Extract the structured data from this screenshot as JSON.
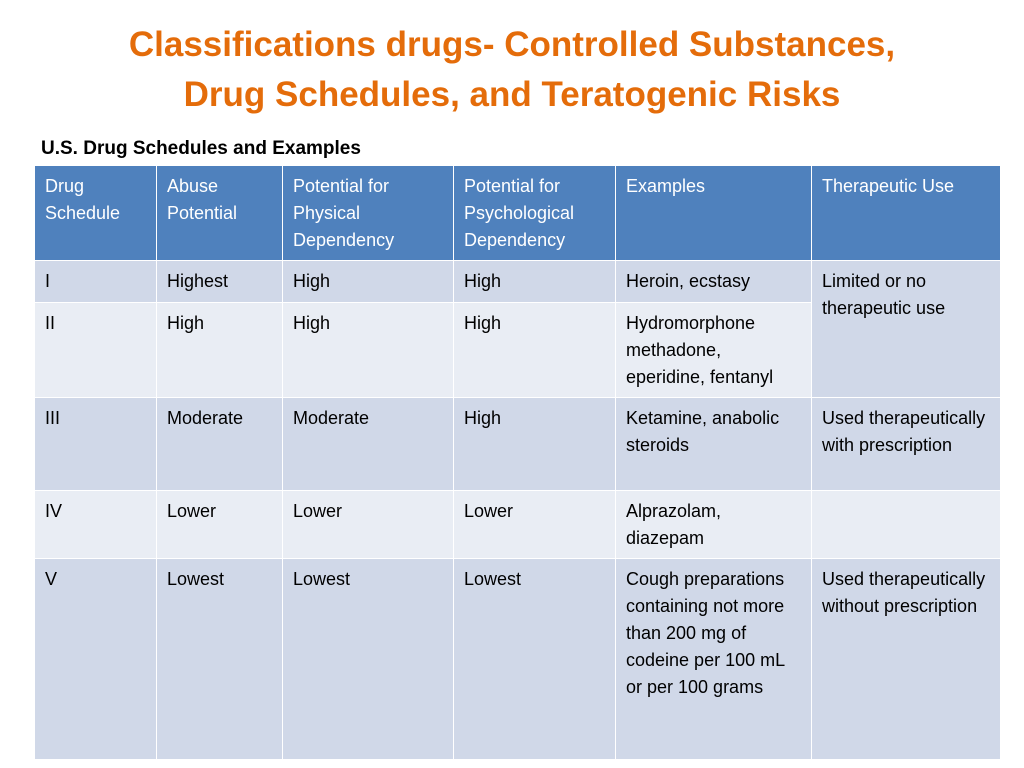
{
  "slide": {
    "title_line1": "Classifications drugs- Controlled Substances,",
    "title_line2": "Drug Schedules, and Teratogenic Risks",
    "subtitle": "U.S. Drug Schedules and Examples"
  },
  "table": {
    "headers": [
      "Drug Schedule",
      "Abuse Potential",
      "Potential for Physical Dependency",
      "Potential for Psychological Dependency",
      "Examples",
      "Therapeutic Use"
    ],
    "rows": [
      {
        "schedule": "I",
        "abuse": "Highest",
        "physical": "High",
        "psychological": "High",
        "examples": "Heroin, ecstasy",
        "therapeutic": "Limited or no therapeutic use"
      },
      {
        "schedule": "II",
        "abuse": "High",
        "physical": "High",
        "psychological": "High",
        "examples": "Hydromorphone methadone, eperidine, fentanyl"
      },
      {
        "schedule": "III",
        "abuse": "Moderate",
        "physical": "Moderate",
        "psychological": "High",
        "examples": "Ketamine, anabolic steroids",
        "therapeutic": "Used therapeutically with prescription"
      },
      {
        "schedule": "IV",
        "abuse": "Lower",
        "physical": "Lower",
        "psychological": "Lower",
        "examples": "Alprazolam, diazepam",
        "therapeutic": ""
      },
      {
        "schedule": "V",
        "abuse": "Lowest",
        "physical": "Lowest",
        "psychological": "Lowest",
        "examples": "Cough preparations containing not more than 200 mg of codeine per 100 mL or per 100 grams",
        "therapeutic": "Used therapeutically without prescription"
      }
    ]
  },
  "colors": {
    "title": "#e46c0a",
    "header_bg": "#4f81bd",
    "row_dark": "#d0d8e8",
    "row_light": "#e9edf4"
  }
}
